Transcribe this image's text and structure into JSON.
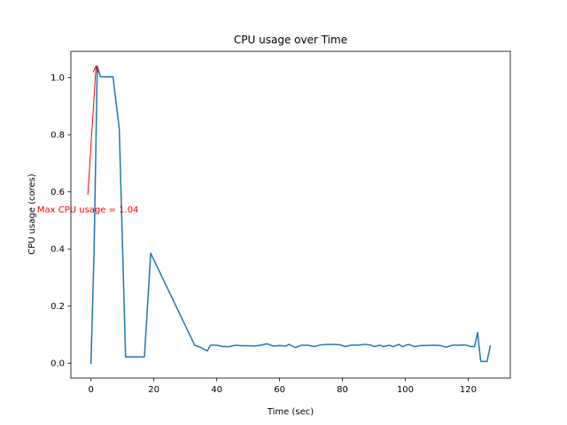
{
  "chart_data": {
    "type": "line",
    "title": "CPU usage over Time",
    "xlabel": "Time (sec)",
    "ylabel": "CPU usage (cores)",
    "xlim": [
      -6.4,
      133.4
    ],
    "ylim": [
      -0.052,
      1.092
    ],
    "xticks": [
      0,
      20,
      40,
      60,
      80,
      100,
      120
    ],
    "yticks": [
      0.0,
      0.2,
      0.4,
      0.6,
      0.8,
      1.0
    ],
    "xtick_labels": [
      "0",
      "20",
      "40",
      "60",
      "80",
      "100",
      "120"
    ],
    "ytick_labels": [
      "0.0",
      "0.2",
      "0.4",
      "0.6",
      "0.8",
      "1.0"
    ],
    "grid": false,
    "series": [
      {
        "color": "#1f77b4",
        "x": [
          0,
          1,
          2,
          3,
          5,
          7,
          9,
          11,
          13,
          15,
          17,
          19,
          33,
          35,
          37,
          38,
          40,
          42,
          44,
          46,
          48,
          50,
          52,
          54,
          56,
          58,
          60,
          62,
          63,
          65,
          67,
          69,
          71,
          73,
          75,
          77,
          79,
          81,
          83,
          85,
          87,
          89,
          90,
          92,
          93,
          95,
          96,
          98,
          99,
          101,
          103,
          105,
          107,
          109,
          111,
          113,
          115,
          117,
          119,
          121,
          122,
          123,
          124,
          125,
          126,
          127
        ],
        "y": [
          0.0,
          0.4,
          1.04,
          1.003,
          1.003,
          1.003,
          0.82,
          0.022,
          0.022,
          0.022,
          0.022,
          0.385,
          0.063,
          0.055,
          0.043,
          0.063,
          0.063,
          0.058,
          0.058,
          0.063,
          0.061,
          0.061,
          0.06,
          0.063,
          0.068,
          0.06,
          0.062,
          0.06,
          0.066,
          0.055,
          0.063,
          0.063,
          0.058,
          0.064,
          0.066,
          0.066,
          0.065,
          0.058,
          0.064,
          0.063,
          0.066,
          0.064,
          0.058,
          0.063,
          0.058,
          0.063,
          0.058,
          0.066,
          0.058,
          0.066,
          0.058,
          0.062,
          0.062,
          0.063,
          0.062,
          0.056,
          0.063,
          0.063,
          0.064,
          0.058,
          0.058,
          0.107,
          0.006,
          0.006,
          0.006,
          0.06
        ]
      }
    ],
    "annotations": [
      {
        "text": "Max CPU usage = 1.04",
        "color": "#ff0000",
        "text_x": -1,
        "text_y": 0.54,
        "arrow_from_x": -1,
        "arrow_from_y": 0.59,
        "arrow_to_x": 1.6,
        "arrow_to_y": 1.04
      }
    ]
  }
}
